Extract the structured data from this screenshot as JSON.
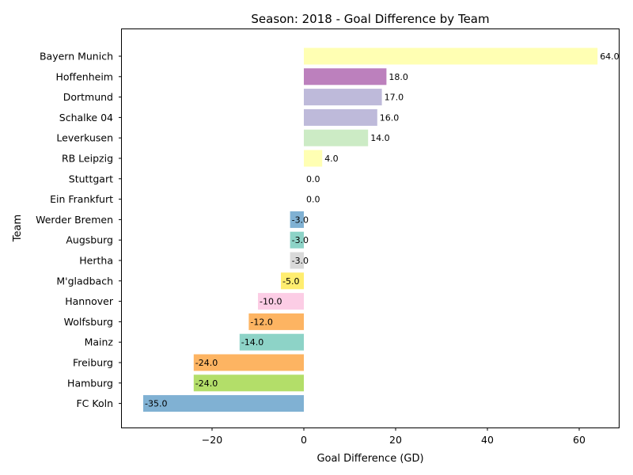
{
  "chart_data": {
    "type": "bar",
    "orientation": "horizontal",
    "title": "Season: 2018 - Goal Difference by Team",
    "xlabel": "Goal Difference (GD)",
    "ylabel": "Team",
    "xlim": [
      -35.0,
      64.0
    ],
    "xticks": [
      -20,
      0,
      20,
      40,
      60
    ],
    "grid": false,
    "categories": [
      "Bayern Munich",
      "Hoffenheim",
      "Dortmund",
      "Schalke 04",
      "Leverkusen",
      "RB Leipzig",
      "Stuttgart",
      "Ein Frankfurt",
      "Werder Bremen",
      "Augsburg",
      "Hertha",
      "M'gladbach",
      "Hannover",
      "Wolfsburg",
      "Mainz",
      "Freiburg",
      "Hamburg",
      "FC Koln"
    ],
    "values": [
      64.0,
      18.0,
      17.0,
      16.0,
      14.0,
      4.0,
      0.0,
      0.0,
      -3.0,
      -3.0,
      -3.0,
      -5.0,
      -10.0,
      -12.0,
      -14.0,
      -24.0,
      -24.0,
      -35.0
    ],
    "value_labels": [
      "64.0",
      "18.0",
      "17.0",
      "16.0",
      "14.0",
      "4.0",
      "0.0",
      "0.0",
      "-3.0",
      "-3.0",
      "-3.0",
      "-5.0",
      "-10.0",
      "-12.0",
      "-14.0",
      "-24.0",
      "-24.0",
      "-35.0"
    ],
    "colors": [
      "#ffffb3",
      "#bc80bd",
      "#bebada",
      "#bebada",
      "#ccebc5",
      "#ffffb3",
      "#ffffb3",
      "#ffffb3",
      "#80b1d3",
      "#8dd3c7",
      "#d9d9d9",
      "#ffed6f",
      "#fccde5",
      "#fdb462",
      "#8dd3c7",
      "#fdb462",
      "#b3de69",
      "#80b1d3"
    ]
  }
}
